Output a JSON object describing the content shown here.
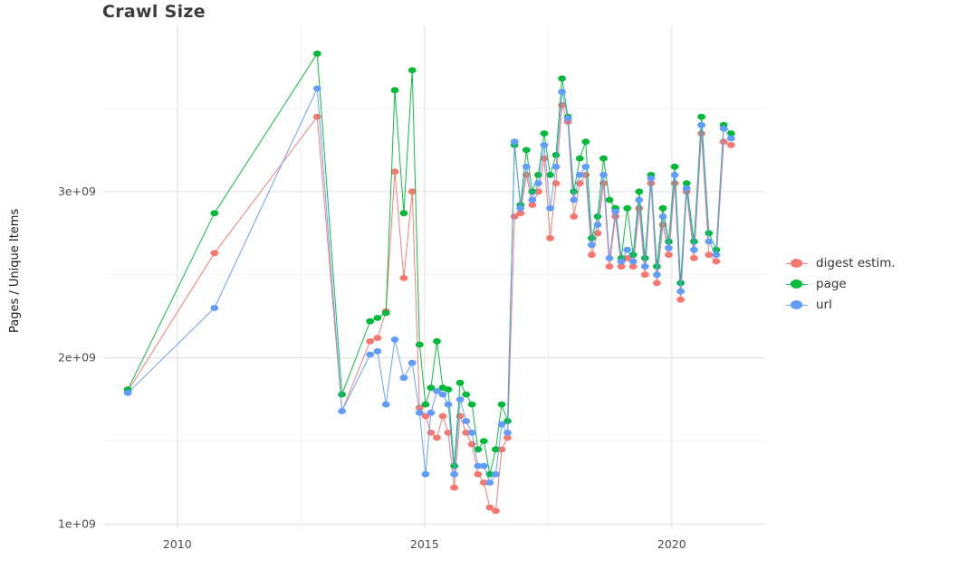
{
  "title": "Crawl Size",
  "ylabel": "Pages / Unique Items",
  "legend": {
    "items": [
      {
        "label": "digest estim.",
        "color": "#F8766D"
      },
      {
        "label": "page",
        "color": "#00BA38"
      },
      {
        "label": "url",
        "color": "#619CFF"
      }
    ]
  },
  "colors": {
    "digest": "#F8766D",
    "page": "#00BA38",
    "url": "#619CFF",
    "grid_major": "#e4e4e4",
    "grid_minor": "#f2f2f2",
    "tick_text": "#4d4d4d"
  },
  "chart_data": {
    "type": "line",
    "title": "Crawl Size",
    "xlabel": "",
    "ylabel": "Pages / Unique Items",
    "legend_position": "right",
    "grid": true,
    "value_unit": "pages, values in billions (1e9)",
    "xlim": [
      2008.52,
      2021.89
    ],
    "ylim": [
      0.97,
      4.0
    ],
    "x_ticks": [
      2010,
      2015,
      2020
    ],
    "x_tick_labels": [
      "2010",
      "2015",
      "2020"
    ],
    "x_minor": [
      2012.5,
      2017.5
    ],
    "y_ticks": [
      1,
      2,
      3
    ],
    "y_tick_labels": [
      "1e+09",
      "2e+09",
      "3e+09"
    ],
    "y_minor": [
      1.5,
      2.5,
      3.5
    ],
    "x": [
      2009.0,
      2010.75,
      2012.83,
      2013.33,
      2013.9,
      2014.05,
      2014.22,
      2014.4,
      2014.58,
      2014.75,
      2014.9,
      2015.02,
      2015.13,
      2015.25,
      2015.37,
      2015.48,
      2015.6,
      2015.72,
      2015.84,
      2015.96,
      2016.08,
      2016.2,
      2016.32,
      2016.44,
      2016.56,
      2016.68,
      2016.82,
      2016.94,
      2017.06,
      2017.18,
      2017.3,
      2017.42,
      2017.54,
      2017.66,
      2017.78,
      2017.9,
      2018.02,
      2018.14,
      2018.26,
      2018.38,
      2018.5,
      2018.62,
      2018.74,
      2018.86,
      2018.98,
      2019.1,
      2019.22,
      2019.34,
      2019.46,
      2019.58,
      2019.7,
      2019.82,
      2019.94,
      2020.06,
      2020.18,
      2020.3,
      2020.45,
      2020.6,
      2020.75,
      2020.9,
      2021.05,
      2021.2
    ],
    "series": [
      {
        "name": "digest estim.",
        "color": "#F8766D",
        "values": [
          1.8,
          2.63,
          3.45,
          1.68,
          2.1,
          2.12,
          2.28,
          3.12,
          2.48,
          3.0,
          1.7,
          1.65,
          1.55,
          1.52,
          1.65,
          1.55,
          1.22,
          1.65,
          1.55,
          1.48,
          1.3,
          1.25,
          1.1,
          1.08,
          1.45,
          1.52,
          2.85,
          2.87,
          3.1,
          2.92,
          3.0,
          3.2,
          2.72,
          3.05,
          3.52,
          3.42,
          2.85,
          3.05,
          3.1,
          2.62,
          2.75,
          3.05,
          2.55,
          2.85,
          2.55,
          2.6,
          2.55,
          2.9,
          2.5,
          3.05,
          2.45,
          2.8,
          2.62,
          3.05,
          2.35,
          3.0,
          2.6,
          3.35,
          2.62,
          2.58,
          3.3,
          3.28
        ]
      },
      {
        "name": "page",
        "color": "#00BA38",
        "values": [
          1.81,
          2.87,
          3.83,
          1.78,
          2.22,
          2.24,
          2.27,
          3.61,
          2.87,
          3.73,
          2.08,
          1.72,
          1.82,
          2.1,
          1.82,
          1.81,
          1.35,
          1.85,
          1.78,
          1.72,
          1.45,
          1.5,
          1.3,
          1.45,
          1.72,
          1.62,
          3.28,
          2.92,
          3.25,
          3.0,
          3.1,
          3.35,
          3.1,
          3.22,
          3.68,
          3.45,
          3.0,
          3.2,
          3.3,
          2.72,
          2.85,
          3.2,
          2.95,
          2.9,
          2.6,
          2.9,
          2.62,
          3.0,
          2.6,
          3.1,
          2.55,
          2.9,
          2.7,
          3.15,
          2.45,
          3.05,
          2.7,
          3.45,
          2.75,
          2.65,
          3.4,
          3.35
        ]
      },
      {
        "name": "url",
        "color": "#619CFF",
        "values": [
          1.79,
          2.3,
          3.62,
          1.68,
          2.02,
          2.04,
          1.72,
          2.11,
          1.88,
          1.97,
          1.67,
          1.3,
          1.67,
          1.8,
          1.78,
          1.72,
          1.3,
          1.75,
          1.62,
          1.55,
          1.35,
          1.35,
          1.25,
          1.3,
          1.6,
          1.55,
          3.3,
          2.9,
          3.15,
          2.95,
          3.05,
          3.28,
          2.9,
          3.15,
          3.6,
          3.44,
          2.95,
          3.1,
          3.15,
          2.68,
          2.8,
          3.1,
          2.6,
          2.88,
          2.58,
          2.65,
          2.58,
          2.95,
          2.55,
          3.08,
          2.5,
          2.85,
          2.66,
          3.1,
          2.4,
          3.02,
          2.65,
          3.4,
          2.7,
          2.62,
          3.38,
          3.32
        ]
      }
    ]
  }
}
